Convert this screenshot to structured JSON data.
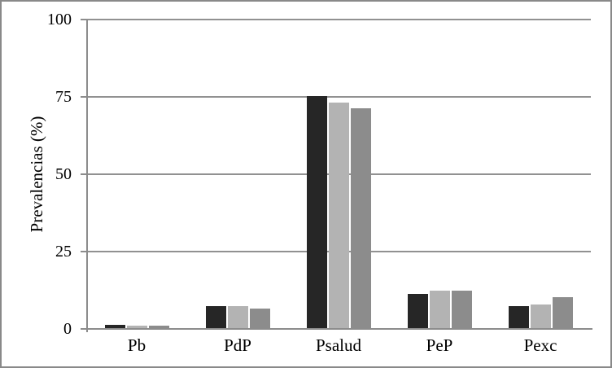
{
  "figure": {
    "background": "#ffffff",
    "border_color": "#898989"
  },
  "chart_data": {
    "type": "bar",
    "title": "",
    "xlabel": "",
    "ylabel": "Prevalencias (%)",
    "ylim": [
      0,
      100
    ],
    "yticks": [
      0,
      25,
      50,
      75,
      100
    ],
    "grid": true,
    "legend": false,
    "categories": [
      "Pb",
      "PdP",
      "Psalud",
      "PeP",
      "Pexc"
    ],
    "series": [
      {
        "color": "#262626",
        "values": [
          1,
          7,
          75,
          11,
          7
        ]
      },
      {
        "color": "#b3b3b3",
        "values": [
          0.8,
          7,
          73,
          12,
          7.5
        ]
      },
      {
        "color": "#8c8c8c",
        "values": [
          0.8,
          6.3,
          71,
          12,
          10
        ]
      }
    ],
    "axis_color": "#8c8c8c",
    "gridline_color": "#919191",
    "text_color": "#000000"
  }
}
